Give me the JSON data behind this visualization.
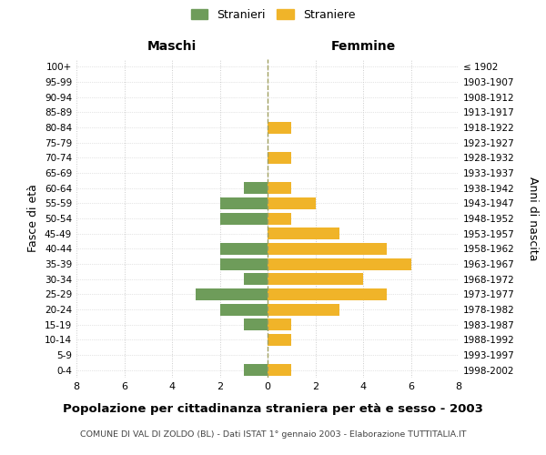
{
  "age_groups": [
    "0-4",
    "5-9",
    "10-14",
    "15-19",
    "20-24",
    "25-29",
    "30-34",
    "35-39",
    "40-44",
    "45-49",
    "50-54",
    "55-59",
    "60-64",
    "65-69",
    "70-74",
    "75-79",
    "80-84",
    "85-89",
    "90-94",
    "95-99",
    "100+"
  ],
  "birth_years": [
    "1998-2002",
    "1993-1997",
    "1988-1992",
    "1983-1987",
    "1978-1982",
    "1973-1977",
    "1968-1972",
    "1963-1967",
    "1958-1962",
    "1953-1957",
    "1948-1952",
    "1943-1947",
    "1938-1942",
    "1933-1937",
    "1928-1932",
    "1923-1927",
    "1918-1922",
    "1913-1917",
    "1908-1912",
    "1903-1907",
    "≤ 1902"
  ],
  "maschi": [
    1,
    0,
    0,
    1,
    2,
    3,
    1,
    2,
    2,
    0,
    2,
    2,
    1,
    0,
    0,
    0,
    0,
    0,
    0,
    0,
    0
  ],
  "femmine": [
    1,
    0,
    1,
    1,
    3,
    5,
    4,
    6,
    5,
    3,
    1,
    2,
    1,
    0,
    1,
    0,
    1,
    0,
    0,
    0,
    0
  ],
  "maschi_color": "#6e9c5a",
  "femmine_color": "#f0b429",
  "title": "Popolazione per cittadinanza straniera per età e sesso - 2003",
  "subtitle": "COMUNE DI VAL DI ZOLDO (BL) - Dati ISTAT 1° gennaio 2003 - Elaborazione TUTTITALIA.IT",
  "legend_maschi": "Stranieri",
  "legend_femmine": "Straniere",
  "xlabel_left": "Maschi",
  "xlabel_right": "Femmine",
  "ylabel_left": "Fasce di età",
  "ylabel_right": "Anni di nascita",
  "xlim": 8,
  "background_color": "#ffffff",
  "grid_color": "#cccccc",
  "dashed_line_color": "#a0a060"
}
